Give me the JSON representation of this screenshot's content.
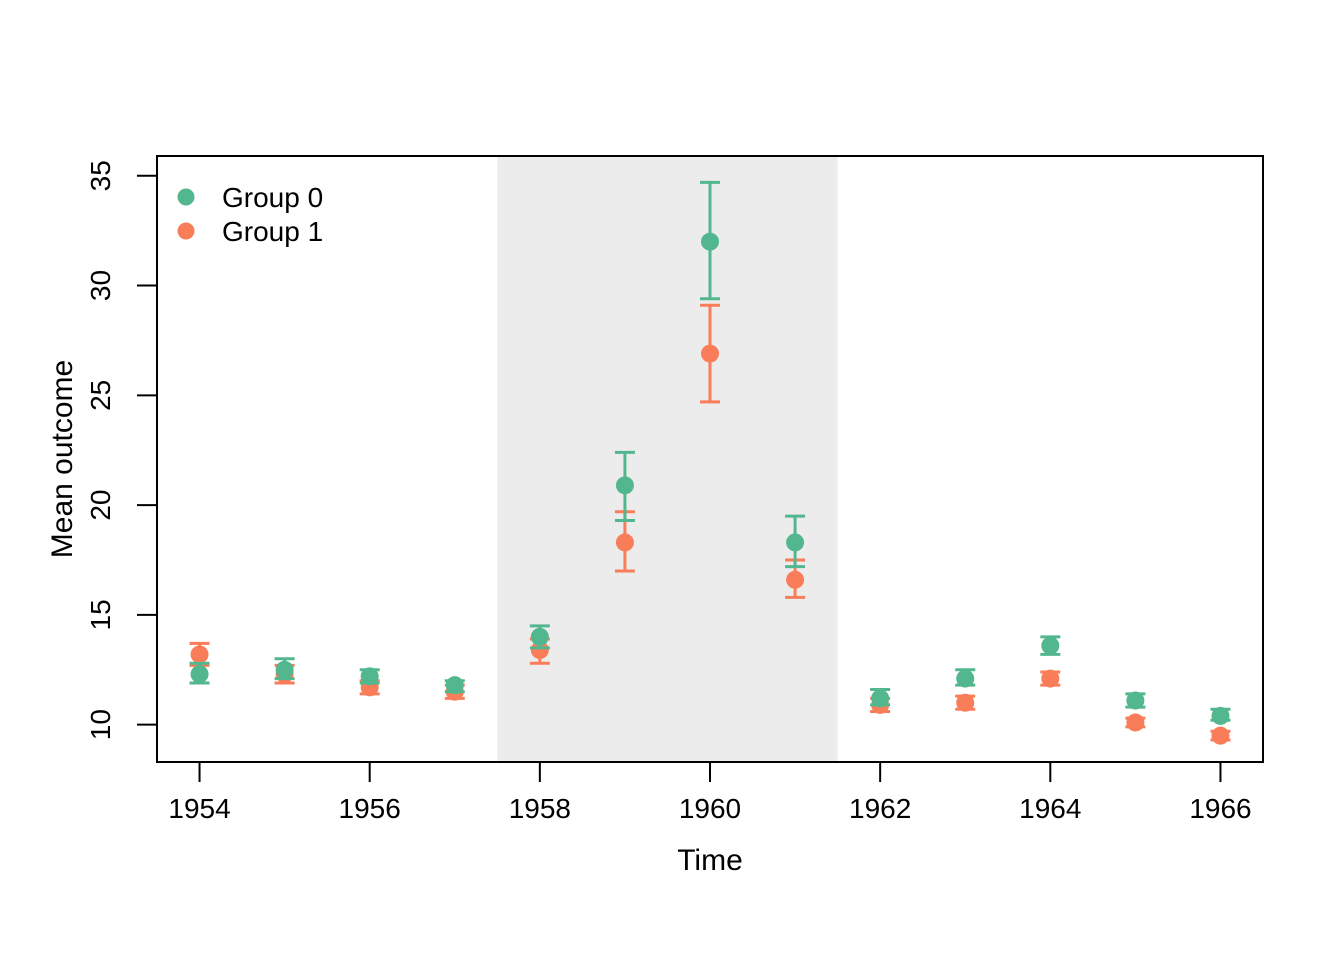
{
  "figure": {
    "background_color": "#FFFFFF",
    "axis_color": "#000000"
  },
  "chart_data": {
    "type": "scatter",
    "error_bars": true,
    "title": "",
    "xlabel": "Time",
    "ylabel": "Mean outcome",
    "xlim": [
      1953.5,
      1966.5
    ],
    "ylim": [
      8.3,
      35.9
    ],
    "x_ticks": [
      1954,
      1956,
      1958,
      1960,
      1962,
      1964,
      1966
    ],
    "y_ticks": [
      10,
      15,
      20,
      25,
      30,
      35
    ],
    "grid": false,
    "shaded_region": {
      "x_start": 1957.5,
      "x_end": 1961.5,
      "color": "#ECECEC"
    },
    "legend": {
      "position": "top-left",
      "entries": [
        {
          "label": "Group 0",
          "color": "#52B78E"
        },
        {
          "label": "Group 1",
          "color": "#F97D58"
        }
      ]
    },
    "x": [
      1954,
      1955,
      1956,
      1957,
      1958,
      1959,
      1960,
      1961,
      1962,
      1963,
      1964,
      1965,
      1966
    ],
    "series": [
      {
        "name": "Group 0",
        "color": "#52B78E",
        "means": [
          12.3,
          12.5,
          12.2,
          11.8,
          14.0,
          20.9,
          32.0,
          18.3,
          11.2,
          12.1,
          13.6,
          11.1,
          10.4
        ],
        "ci_low": [
          11.9,
          12.1,
          11.9,
          11.5,
          13.5,
          19.3,
          29.4,
          17.2,
          10.9,
          11.8,
          13.2,
          10.8,
          10.2
        ],
        "ci_high": [
          12.8,
          13.0,
          12.5,
          12.0,
          14.5,
          22.4,
          34.7,
          19.5,
          11.6,
          12.5,
          14.0,
          11.4,
          10.7
        ]
      },
      {
        "name": "Group 1",
        "color": "#F97D58",
        "means": [
          13.2,
          12.3,
          11.7,
          11.5,
          13.4,
          18.3,
          26.9,
          16.6,
          10.9,
          11.0,
          12.1,
          10.1,
          9.5
        ],
        "ci_low": [
          12.7,
          11.9,
          11.4,
          11.2,
          12.8,
          17.0,
          24.7,
          15.8,
          10.6,
          10.7,
          11.8,
          9.9,
          9.3
        ],
        "ci_high": [
          13.7,
          12.7,
          12.0,
          11.8,
          13.9,
          19.7,
          29.1,
          17.5,
          11.2,
          11.3,
          12.4,
          10.3,
          9.7
        ]
      }
    ]
  }
}
